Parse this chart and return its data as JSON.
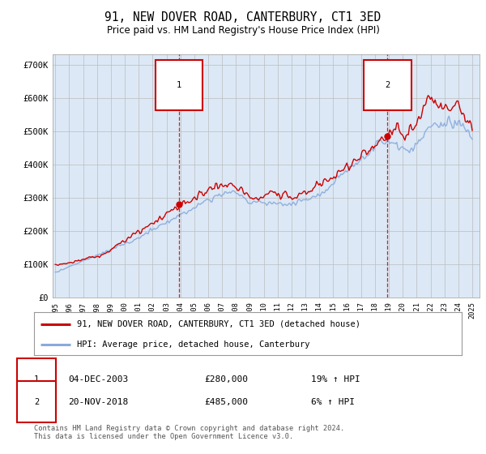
{
  "title": "91, NEW DOVER ROAD, CANTERBURY, CT1 3ED",
  "subtitle": "Price paid vs. HM Land Registry's House Price Index (HPI)",
  "ylabel_ticks": [
    "£0",
    "£100K",
    "£200K",
    "£300K",
    "£400K",
    "£500K",
    "£600K",
    "£700K"
  ],
  "ytick_values": [
    0,
    100000,
    200000,
    300000,
    400000,
    500000,
    600000,
    700000
  ],
  "ylim": [
    0,
    730000
  ],
  "xlim_start": 1994.8,
  "xlim_end": 2025.5,
  "background_color": "#ffffff",
  "chart_bg_color": "#dce8f5",
  "grid_color": "#bbbbbb",
  "red_color": "#cc0000",
  "blue_color": "#88aadd",
  "transaction1_x": 2003.92,
  "transaction1_y": 280000,
  "transaction1_label": "04-DEC-2003",
  "transaction1_price": "£280,000",
  "transaction1_hpi": "19% ↑ HPI",
  "transaction2_x": 2018.9,
  "transaction2_y": 485000,
  "transaction2_label": "20-NOV-2018",
  "transaction2_price": "£485,000",
  "transaction2_hpi": "6% ↑ HPI",
  "legend_line1": "91, NEW DOVER ROAD, CANTERBURY, CT1 3ED (detached house)",
  "legend_line2": "HPI: Average price, detached house, Canterbury",
  "footer": "Contains HM Land Registry data © Crown copyright and database right 2024.\nThis data is licensed under the Open Government Licence v3.0."
}
